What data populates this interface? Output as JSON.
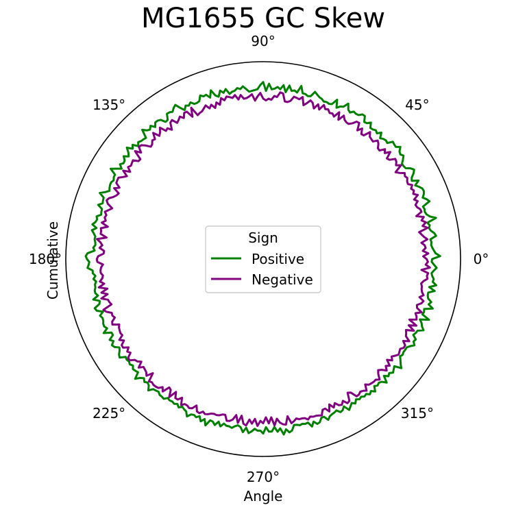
{
  "chart_data": {
    "type": "line",
    "projection": "polar",
    "title": "MG1655 GC Skew",
    "xlabel": "Angle",
    "ylabel": "Cumulative",
    "angle_ticks": [
      "0°",
      "45°",
      "90°",
      "135°",
      "180°",
      "225°",
      "270°",
      "315°"
    ],
    "grid": false,
    "legend": {
      "title": "Sign",
      "placement": "center"
    },
    "r_range": [
      0,
      1
    ],
    "series": [
      {
        "name": "Positive",
        "color": "#008000",
        "baseline_r": 0.85,
        "values": [
          0.856,
          0.897,
          0.874,
          0.866,
          0.859,
          0.854,
          0.857,
          0.853,
          0.884,
          0.877,
          0.862,
          0.855,
          0.861,
          0.852,
          0.9,
          0.871,
          0.858,
          0.853,
          0.856,
          0.852,
          0.892,
          0.882,
          0.866,
          0.878,
          0.884,
          0.882,
          0.87,
          0.856,
          0.882,
          0.851,
          0.858,
          0.877,
          0.889,
          0.877,
          0.856,
          0.853,
          0.853,
          0.869,
          0.883,
          0.874,
          0.88,
          0.898,
          0.88,
          0.882,
          0.886,
          0.861,
          0.865,
          0.861,
          0.852,
          0.877,
          0.859,
          0.867,
          0.86,
          0.858,
          0.881,
          0.866,
          0.863,
          0.889,
          0.889,
          0.875,
          0.873,
          0.877,
          0.863,
          0.871,
          0.898,
          0.872,
          0.866,
          0.852,
          0.89,
          0.859,
          0.854,
          0.858,
          0.855,
          0.864,
          0.868,
          0.877,
          0.887,
          0.86,
          0.856,
          0.863,
          0.863,
          0.898,
          0.861,
          0.869,
          0.864,
          0.889,
          0.853,
          0.887,
          0.865,
          0.875,
          0.865,
          0.861,
          0.889,
          0.852,
          0.897,
          0.882,
          0.861,
          0.857,
          0.854,
          0.851,
          0.866,
          0.881,
          0.869,
          0.876,
          0.865,
          0.862,
          0.854,
          0.882,
          0.866,
          0.881,
          0.853,
          0.863,
          0.895,
          0.861,
          0.881,
          0.878,
          0.888,
          0.863,
          0.859,
          0.86,
          0.875,
          0.864,
          0.871,
          0.853,
          0.873,
          0.899,
          0.89,
          0.876,
          0.882,
          0.883,
          0.855,
          0.853,
          0.876,
          0.882,
          0.882,
          0.864,
          0.884,
          0.871,
          0.879,
          0.897,
          0.854,
          0.858,
          0.86,
          0.867,
          0.853,
          0.879,
          0.866,
          0.892,
          0.87,
          0.857,
          0.878,
          0.861,
          0.858,
          0.87,
          0.851,
          0.874,
          0.898,
          0.864,
          0.863,
          0.856,
          0.863,
          0.862,
          0.858,
          0.852,
          0.869,
          0.893,
          0.866,
          0.864,
          0.861,
          0.88,
          0.855,
          0.854,
          0.851,
          0.871,
          0.865,
          0.87,
          0.883,
          0.859,
          0.88,
          0.868,
          0.858,
          0.86,
          0.855,
          0.853,
          0.863,
          0.855,
          0.89,
          0.899,
          0.893,
          0.881,
          0.885,
          0.891,
          0.866,
          0.866,
          0.854,
          0.866,
          0.854,
          0.862,
          0.862,
          0.868,
          0.868,
          0.857,
          0.885,
          0.855,
          0.86,
          0.889,
          0.883,
          0.854,
          0.875,
          0.867,
          0.868,
          0.874,
          0.875,
          0.865,
          0.891,
          0.854,
          0.853,
          0.879,
          0.865,
          0.882,
          0.875,
          0.855,
          0.863,
          0.876,
          0.882,
          0.855,
          0.859,
          0.855,
          0.861,
          0.852,
          0.864,
          0.86,
          0.855,
          0.888,
          0.866,
          0.854,
          0.866,
          0.857,
          0.864,
          0.884,
          0.863,
          0.86,
          0.856,
          0.865,
          0.866,
          0.869,
          0.854,
          0.859,
          0.856,
          0.861,
          0.853,
          0.865,
          0.853,
          0.86,
          0.865,
          0.886,
          0.868,
          0.864,
          0.87,
          0.859,
          0.881,
          0.863,
          0.892,
          0.86,
          0.862,
          0.876,
          0.854,
          0.875,
          0.857,
          0.865,
          0.865,
          0.87,
          0.859,
          0.852,
          0.859,
          0.883,
          0.859,
          0.885,
          0.875,
          0.861,
          0.87,
          0.869,
          0.884,
          0.852,
          0.875,
          0.875,
          0.853,
          0.878,
          0.862,
          0.895,
          0.87,
          0.888,
          0.881,
          0.855,
          0.857,
          0.862,
          0.858,
          0.862,
          0.859,
          0.884,
          0.862,
          0.879,
          0.875,
          0.857,
          0.856,
          0.879,
          0.865,
          0.86,
          0.857,
          0.852,
          0.869,
          0.865,
          0.851,
          0.88,
          0.868,
          0.856,
          0.868,
          0.852,
          0.862,
          0.856,
          0.865,
          0.86,
          0.873,
          0.863,
          0.879,
          0.855,
          0.864,
          0.858,
          0.865,
          0.885,
          0.851,
          0.869,
          0.861,
          0.874,
          0.866,
          0.858,
          0.892,
          0.876,
          0.864,
          0.851,
          0.857,
          0.853,
          0.854,
          0.854,
          0.866,
          0.882,
          0.869,
          0.874,
          0.852,
          0.859,
          0.862,
          0.889,
          0.874,
          0.866,
          0.851,
          0.895,
          0.854,
          0.858,
          0.854,
          0.895,
          0.869,
          0.879,
          0.859,
          0.854,
          0.853,
          0.884,
          0.853,
          0.887,
          0.867,
          0.87,
          0.861,
          0.856,
          0.867,
          0.88,
          0.866,
          0.854
        ]
      },
      {
        "name": "Negative",
        "color": "#800080",
        "baseline_r": 0.85,
        "values": [
          0.828,
          0.811,
          0.837,
          0.81,
          0.825,
          0.821,
          0.806,
          0.838,
          0.823,
          0.812,
          0.802,
          0.848,
          0.825,
          0.845,
          0.826,
          0.841,
          0.806,
          0.837,
          0.835,
          0.823,
          0.819,
          0.836,
          0.822,
          0.848,
          0.829,
          0.839,
          0.83,
          0.843,
          0.826,
          0.829,
          0.838,
          0.832,
          0.839,
          0.817,
          0.802,
          0.845,
          0.824,
          0.836,
          0.84,
          0.814,
          0.808,
          0.842,
          0.817,
          0.831,
          0.806,
          0.808,
          0.826,
          0.835,
          0.815,
          0.818,
          0.822,
          0.841,
          0.808,
          0.805,
          0.83,
          0.808,
          0.844,
          0.842,
          0.822,
          0.81,
          0.811,
          0.817,
          0.834,
          0.802,
          0.838,
          0.806,
          0.817,
          0.813,
          0.827,
          0.822,
          0.839,
          0.809,
          0.832,
          0.805,
          0.83,
          0.839,
          0.82,
          0.806,
          0.845,
          0.83,
          0.834,
          0.837,
          0.813,
          0.805,
          0.806,
          0.845,
          0.849,
          0.824,
          0.828,
          0.808,
          0.813,
          0.804,
          0.813,
          0.842,
          0.825,
          0.804,
          0.837,
          0.827,
          0.82,
          0.818,
          0.839,
          0.818,
          0.843,
          0.831,
          0.838,
          0.844,
          0.828,
          0.843,
          0.812,
          0.828,
          0.803,
          0.825,
          0.81,
          0.831,
          0.82,
          0.81,
          0.807,
          0.801,
          0.849,
          0.805,
          0.841,
          0.842,
          0.82,
          0.836,
          0.825,
          0.816,
          0.842,
          0.836,
          0.802,
          0.821,
          0.815,
          0.847,
          0.828,
          0.816,
          0.848,
          0.818,
          0.823,
          0.809,
          0.805,
          0.828,
          0.845,
          0.848,
          0.821,
          0.849,
          0.802,
          0.803,
          0.828,
          0.824,
          0.82,
          0.828,
          0.806,
          0.839,
          0.808,
          0.823,
          0.841,
          0.84,
          0.838,
          0.813,
          0.836,
          0.804,
          0.81,
          0.822,
          0.84,
          0.847,
          0.835,
          0.807,
          0.821,
          0.837,
          0.825,
          0.83,
          0.821,
          0.838,
          0.804,
          0.837,
          0.833,
          0.833,
          0.801,
          0.848,
          0.829,
          0.818,
          0.831,
          0.807,
          0.809,
          0.836,
          0.843,
          0.84,
          0.812,
          0.822,
          0.826,
          0.826,
          0.816,
          0.821,
          0.835,
          0.815,
          0.845,
          0.803,
          0.837,
          0.808,
          0.844,
          0.813,
          0.809,
          0.802,
          0.849,
          0.838,
          0.814,
          0.816,
          0.808,
          0.828,
          0.833,
          0.801,
          0.809,
          0.812,
          0.815,
          0.811,
          0.836,
          0.817,
          0.839,
          0.84,
          0.816,
          0.833,
          0.823,
          0.848,
          0.849,
          0.827,
          0.822,
          0.807,
          0.837,
          0.816,
          0.82,
          0.824,
          0.836,
          0.804,
          0.848,
          0.841,
          0.846,
          0.845,
          0.842,
          0.825,
          0.842,
          0.806,
          0.812,
          0.846,
          0.805,
          0.833,
          0.833,
          0.814,
          0.848,
          0.835,
          0.836,
          0.843,
          0.837,
          0.815,
          0.842,
          0.845,
          0.831,
          0.839,
          0.834,
          0.826,
          0.823,
          0.825,
          0.822,
          0.814,
          0.812,
          0.84,
          0.838,
          0.828,
          0.802,
          0.84,
          0.801,
          0.84,
          0.848,
          0.816,
          0.836,
          0.811,
          0.846,
          0.82,
          0.832,
          0.802,
          0.833,
          0.803,
          0.845,
          0.812,
          0.833,
          0.843,
          0.847,
          0.806,
          0.844,
          0.836,
          0.825,
          0.832,
          0.831,
          0.833,
          0.844,
          0.833,
          0.838,
          0.838,
          0.841,
          0.846,
          0.821,
          0.82,
          0.842,
          0.809,
          0.833,
          0.815,
          0.834,
          0.839,
          0.824,
          0.846,
          0.841,
          0.801,
          0.809,
          0.841,
          0.841,
          0.833,
          0.838,
          0.848,
          0.819,
          0.832,
          0.835,
          0.837,
          0.836,
          0.849,
          0.825,
          0.81,
          0.822,
          0.843,
          0.824,
          0.838,
          0.809,
          0.831,
          0.817,
          0.829,
          0.84,
          0.835,
          0.83,
          0.842,
          0.842,
          0.822,
          0.849,
          0.822,
          0.816,
          0.808,
          0.846,
          0.81,
          0.846,
          0.802,
          0.835,
          0.83,
          0.819,
          0.847,
          0.818,
          0.813,
          0.832,
          0.84,
          0.815,
          0.833,
          0.822,
          0.817,
          0.816,
          0.81,
          0.82,
          0.838,
          0.834,
          0.839,
          0.804,
          0.846,
          0.824,
          0.835
        ]
      }
    ]
  }
}
